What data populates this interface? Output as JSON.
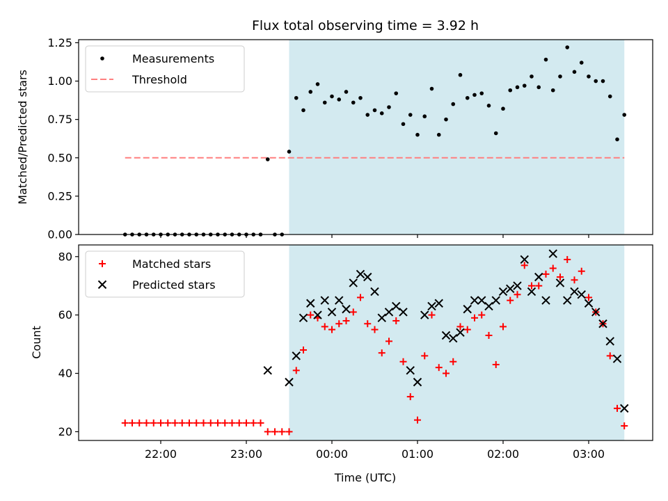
{
  "chart_data": [
    {
      "type": "scatter",
      "title": "Flux total observing time = 3.92 h",
      "xlabel": "",
      "ylabel": "Matched/Predicted stars",
      "ylim": [
        0,
        1.27
      ],
      "yticks": [
        "0.00",
        "0.25",
        "0.50",
        "0.75",
        "1.00",
        "1.25"
      ],
      "xticks": [],
      "shaded_interval": {
        "start": "23:30",
        "end": "03:25",
        "color": "#d3eaf0"
      },
      "threshold": {
        "name": "Threshold",
        "value": 0.5,
        "start": "21:35",
        "end": "03:25",
        "color": "#ff7f7f"
      },
      "legend": {
        "position": "top-left",
        "entries": [
          "Measurements",
          "Threshold"
        ]
      },
      "series": [
        {
          "name": "Measurements",
          "marker": "dot",
          "color": "#000000",
          "x": [
            "21:35",
            "21:40",
            "21:45",
            "21:50",
            "21:55",
            "22:00",
            "22:05",
            "22:10",
            "22:15",
            "22:20",
            "22:25",
            "22:30",
            "22:35",
            "22:40",
            "22:45",
            "22:50",
            "22:55",
            "23:00",
            "23:05",
            "23:10",
            "23:15",
            "23:20",
            "23:25",
            "23:30",
            "23:35",
            "23:40",
            "23:45",
            "23:50",
            "23:55",
            "00:00",
            "00:05",
            "00:10",
            "00:15",
            "00:20",
            "00:25",
            "00:30",
            "00:35",
            "00:40",
            "00:45",
            "00:50",
            "00:55",
            "01:00",
            "01:05",
            "01:10",
            "01:15",
            "01:20",
            "01:25",
            "01:30",
            "01:35",
            "01:40",
            "01:45",
            "01:50",
            "01:55",
            "02:00",
            "02:05",
            "02:10",
            "02:15",
            "02:20",
            "02:25",
            "02:30",
            "02:35",
            "02:40",
            "02:45",
            "02:50",
            "02:55",
            "03:00",
            "03:05",
            "03:10",
            "03:15",
            "03:20",
            "03:25"
          ],
          "y": [
            0,
            0,
            0,
            0,
            0,
            0,
            0,
            0,
            0,
            0,
            0,
            0,
            0,
            0,
            0,
            0,
            0,
            0,
            0,
            0,
            0.49,
            0,
            0,
            0.54,
            0.89,
            0.81,
            0.93,
            0.98,
            0.86,
            0.9,
            0.88,
            0.93,
            0.86,
            0.89,
            0.78,
            0.81,
            0.79,
            0.83,
            0.92,
            0.72,
            0.78,
            0.65,
            0.77,
            0.95,
            0.65,
            0.75,
            0.85,
            1.04,
            0.89,
            0.91,
            0.92,
            0.84,
            0.66,
            0.82,
            0.94,
            0.96,
            0.97,
            1.03,
            0.96,
            1.14,
            0.94,
            1.03,
            1.22,
            1.06,
            1.12,
            1.03,
            1.0,
            1.0,
            0.9,
            0.62,
            0.78
          ]
        }
      ]
    },
    {
      "type": "scatter",
      "title": "",
      "xlabel": "Time (UTC)",
      "ylabel": "Count",
      "ylim": [
        17,
        84
      ],
      "yticks": [
        "20",
        "40",
        "60",
        "80"
      ],
      "xticks": [
        "22:00",
        "23:00",
        "00:00",
        "01:00",
        "02:00",
        "03:00"
      ],
      "shaded_interval": {
        "start": "23:30",
        "end": "03:25",
        "color": "#d3eaf0"
      },
      "legend": {
        "position": "top-left",
        "entries": [
          "Matched stars",
          "Predicted stars"
        ]
      },
      "series": [
        {
          "name": "Matched stars",
          "marker": "plus",
          "color": "#ff0000",
          "x": [
            "21:35",
            "21:40",
            "21:45",
            "21:50",
            "21:55",
            "22:00",
            "22:05",
            "22:10",
            "22:15",
            "22:20",
            "22:25",
            "22:30",
            "22:35",
            "22:40",
            "22:45",
            "22:50",
            "22:55",
            "23:00",
            "23:05",
            "23:10",
            "23:15",
            "23:20",
            "23:25",
            "23:30",
            "23:35",
            "23:40",
            "23:45",
            "23:50",
            "23:55",
            "00:00",
            "00:05",
            "00:10",
            "00:15",
            "00:20",
            "00:25",
            "00:30",
            "00:35",
            "00:40",
            "00:45",
            "00:50",
            "00:55",
            "01:00",
            "01:05",
            "01:10",
            "01:15",
            "01:20",
            "01:25",
            "01:30",
            "01:35",
            "01:40",
            "01:45",
            "01:50",
            "01:55",
            "02:00",
            "02:05",
            "02:10",
            "02:15",
            "02:20",
            "02:25",
            "02:30",
            "02:35",
            "02:40",
            "02:45",
            "02:50",
            "02:55",
            "03:00",
            "03:05",
            "03:10",
            "03:15",
            "03:20",
            "03:25"
          ],
          "y": [
            23,
            23,
            23,
            23,
            23,
            23,
            23,
            23,
            23,
            23,
            23,
            23,
            23,
            23,
            23,
            23,
            23,
            23,
            23,
            23,
            20,
            20,
            20,
            20,
            41,
            48,
            60,
            59,
            56,
            55,
            57,
            58,
            61,
            66,
            57,
            55,
            47,
            51,
            58,
            44,
            32,
            24,
            46,
            60,
            42,
            40,
            44,
            56,
            55,
            59,
            60,
            53,
            43,
            56,
            65,
            67,
            77,
            70,
            70,
            74,
            76,
            73,
            79,
            72,
            75,
            66,
            61,
            57,
            46,
            28,
            22
          ]
        },
        {
          "name": "Predicted stars",
          "marker": "x",
          "color": "#000000",
          "x": [
            "23:15",
            "23:30",
            "23:35",
            "23:40",
            "23:45",
            "23:50",
            "23:55",
            "00:00",
            "00:05",
            "00:10",
            "00:15",
            "00:20",
            "00:25",
            "00:30",
            "00:35",
            "00:40",
            "00:45",
            "00:50",
            "00:55",
            "01:00",
            "01:05",
            "01:10",
            "01:15",
            "01:20",
            "01:25",
            "01:30",
            "01:35",
            "01:40",
            "01:45",
            "01:50",
            "01:55",
            "02:00",
            "02:05",
            "02:10",
            "02:15",
            "02:20",
            "02:25",
            "02:30",
            "02:35",
            "02:40",
            "02:45",
            "02:50",
            "02:55",
            "03:00",
            "03:05",
            "03:10",
            "03:15",
            "03:20",
            "03:25"
          ],
          "y": [
            41,
            37,
            46,
            59,
            64,
            60,
            65,
            61,
            65,
            62,
            71,
            74,
            73,
            68,
            59,
            61,
            63,
            61,
            41,
            37,
            60,
            63,
            64,
            53,
            52,
            54,
            62,
            65,
            65,
            63,
            65,
            68,
            69,
            70,
            79,
            68,
            73,
            65,
            81,
            71,
            65,
            68,
            67,
            64,
            61,
            57,
            51,
            45,
            28
          ]
        }
      ]
    }
  ]
}
